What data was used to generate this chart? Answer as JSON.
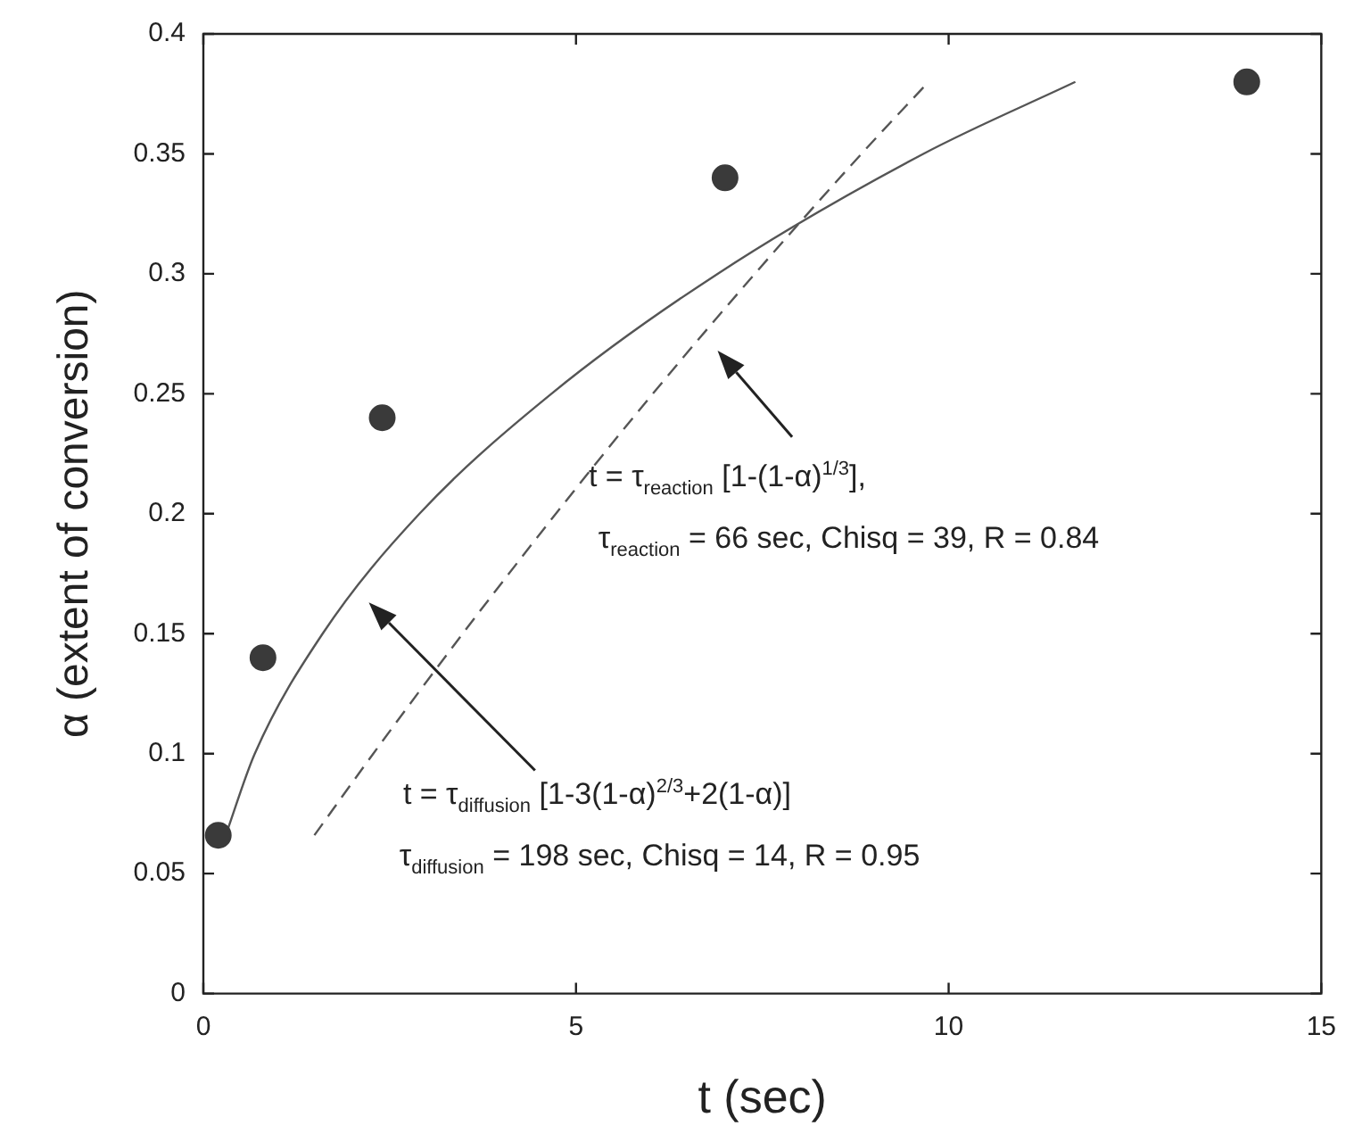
{
  "chart_data": {
    "type": "scatter",
    "xlabel": "t (sec)",
    "ylabel": "α (extent of conversion)",
    "xlim": [
      0,
      15
    ],
    "xticks": [
      0,
      5,
      10,
      15
    ],
    "ylim": [
      0,
      0.4
    ],
    "yticks": [
      0,
      0.05,
      0.1,
      0.15,
      0.2,
      0.25,
      0.3,
      0.35,
      0.4
    ],
    "grid": false,
    "legend": false,
    "marker": "circle",
    "series": [
      {
        "type": "scatter",
        "color": "#3a3a3a",
        "x": [
          0.2,
          0.8,
          2.4,
          7.0,
          14.0
        ],
        "values": [
          0.066,
          0.14,
          0.24,
          0.34,
          0.38
        ]
      },
      {
        "type": "line",
        "color": "#555555",
        "line_style": "solid",
        "marker": "none",
        "x": [
          0.3,
          0.69,
          1.6,
          2.9,
          4.67,
          6.9,
          9.66,
          11.7
        ],
        "values": [
          0.066,
          0.1,
          0.15,
          0.2,
          0.25,
          0.3,
          0.35,
          0.38
        ]
      },
      {
        "type": "line",
        "color": "#555555",
        "line_style": "dashed",
        "marker": "none",
        "x": [
          1.49,
          2.28,
          3.48,
          4.73,
          6.03,
          7.4,
          8.83,
          9.73
        ],
        "values": [
          0.066,
          0.1,
          0.15,
          0.2,
          0.25,
          0.3,
          0.35,
          0.38
        ]
      }
    ],
    "annotations": [
      "t = τ$_{reaction}$ [1-(1-α)$^{1/3}$],",
      "τ$_{reaction}$ = 66 sec, Chisq = 39, R = 0.84",
      "t = τ$_{diffusion}$ [1-3(1-α)$^{2/3}$+2(1-α)]",
      "τ$_{diffusion}$ = 198 sec, Chisq = 14, R = 0.95"
    ]
  }
}
